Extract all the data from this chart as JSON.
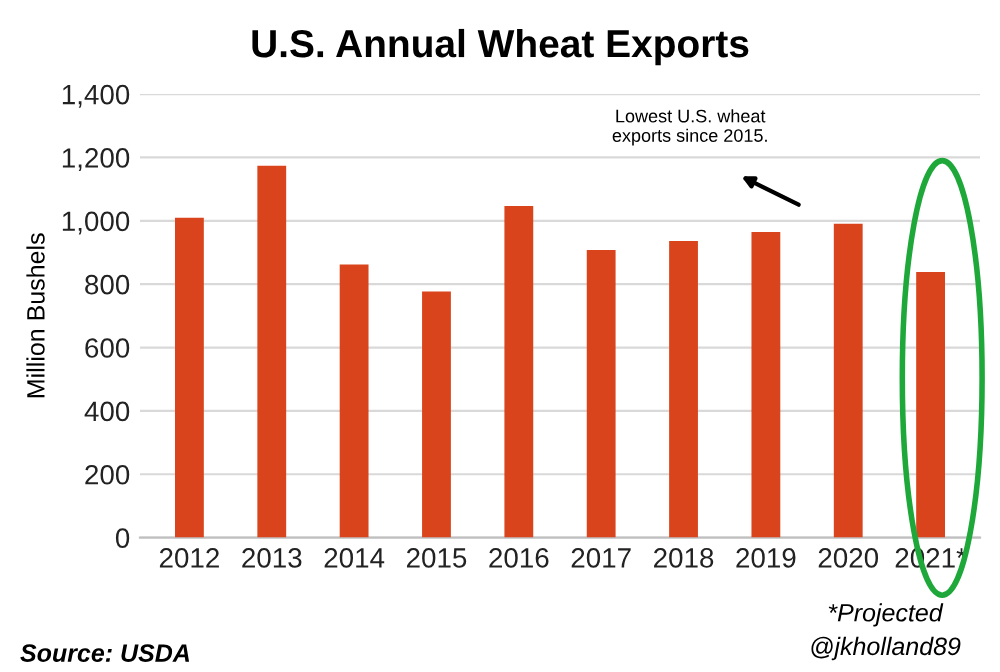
{
  "chart_data": {
    "type": "bar",
    "title": "U.S. Annual Wheat Exports",
    "ylabel": "Million Bushels",
    "categories": [
      "2012",
      "2013",
      "2014",
      "2015",
      "2016",
      "2017",
      "2018",
      "2019",
      "2020",
      "2021*"
    ],
    "values": [
      1010,
      1174,
      862,
      777,
      1047,
      908,
      936,
      965,
      991,
      838
    ],
    "color": "#d9441c",
    "ylim": [
      0,
      1400
    ],
    "yticks": [
      {
        "value": 0,
        "label": "0"
      },
      {
        "value": 200,
        "label": "200"
      },
      {
        "value": 400,
        "label": "400"
      },
      {
        "value": 600,
        "label": "600"
      },
      {
        "value": 800,
        "label": "800"
      },
      {
        "value": 1000,
        "label": "1,000"
      },
      {
        "value": 1200,
        "label": "1,200"
      },
      {
        "value": 1400,
        "label": "1,400"
      }
    ],
    "grid": "y",
    "annotations": [
      "Lowest U.S. wheat\nexports since 2015.",
      "*Projected",
      "@jkholland89",
      "Source: USDA"
    ]
  }
}
